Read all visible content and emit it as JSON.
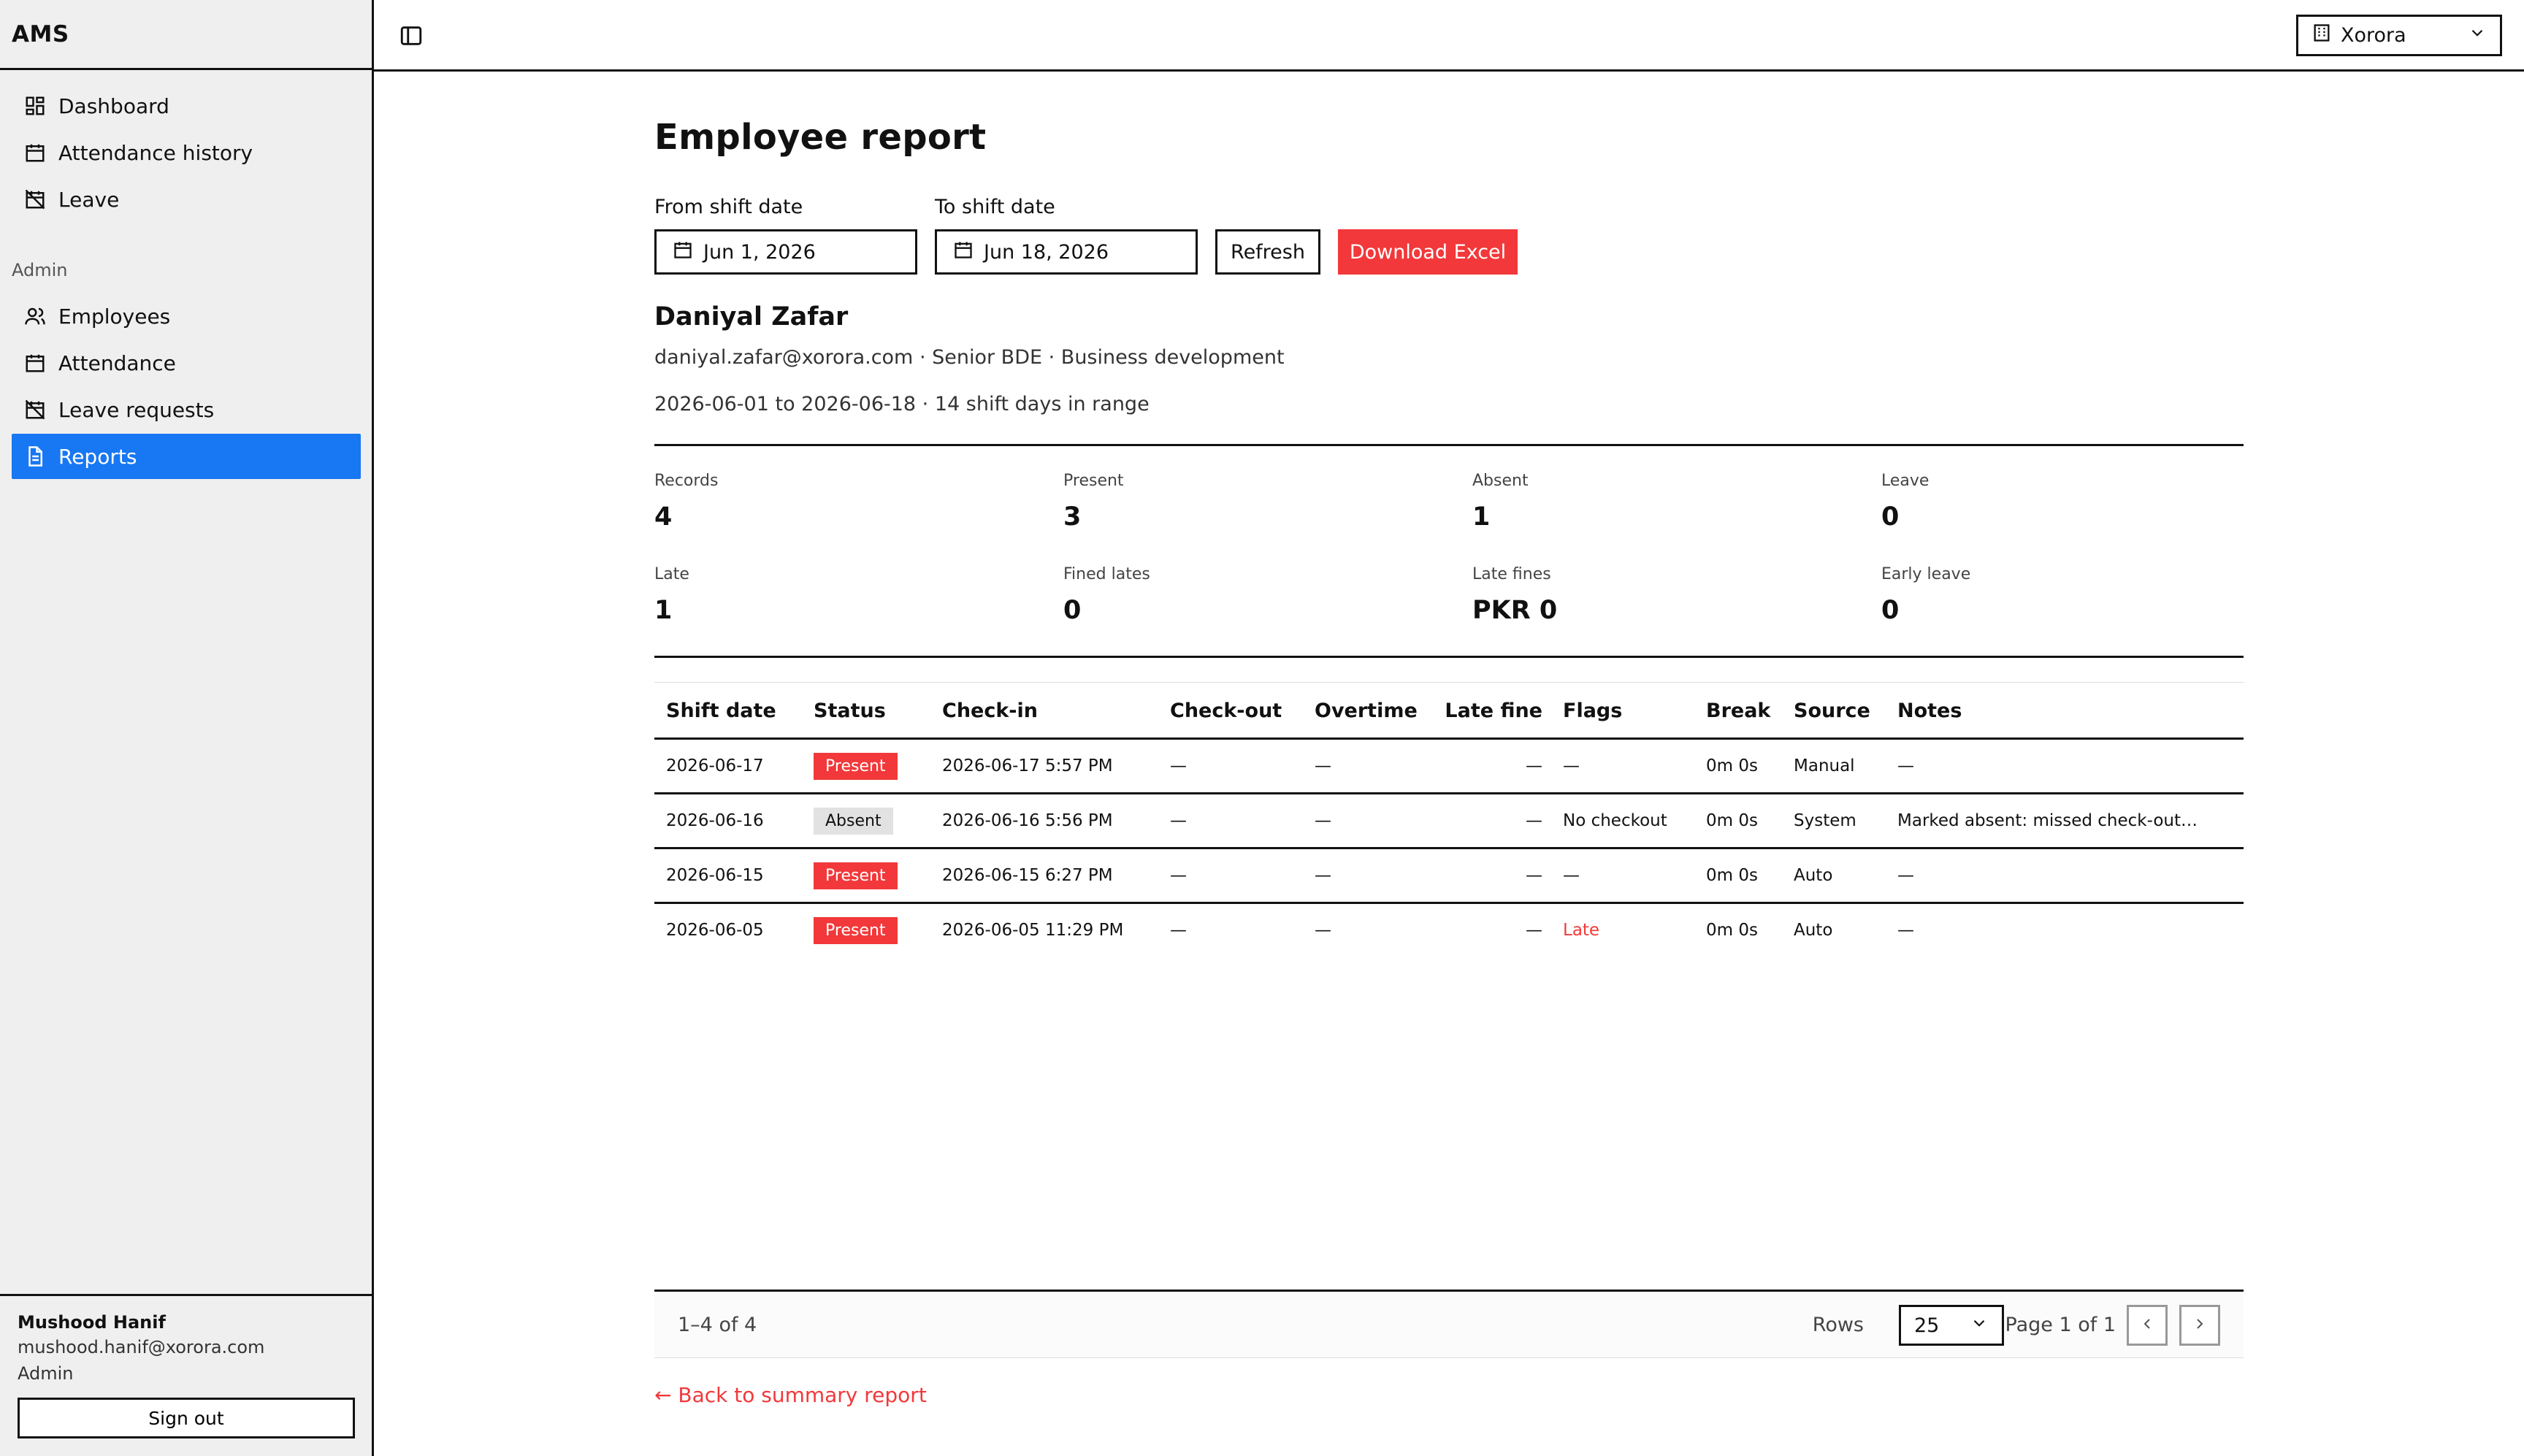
{
  "app": {
    "title": "AMS"
  },
  "sidebar": {
    "nav": [
      {
        "label": "Dashboard",
        "icon": "dashboard-icon"
      },
      {
        "label": "Attendance history",
        "icon": "calendar-icon"
      },
      {
        "label": "Leave",
        "icon": "calendar-off-icon"
      }
    ],
    "admin_section_label": "Admin",
    "admin_nav": [
      {
        "label": "Employees",
        "icon": "users-icon"
      },
      {
        "label": "Attendance",
        "icon": "calendar-icon"
      },
      {
        "label": "Leave requests",
        "icon": "calendar-off-icon"
      },
      {
        "label": "Reports",
        "icon": "file-report-icon",
        "active": true
      }
    ],
    "user": {
      "name": "Mushood Hanif",
      "email": "mushood.hanif@xorora.com",
      "role": "Admin"
    },
    "signout_label": "Sign out"
  },
  "topbar": {
    "org": "Xorora"
  },
  "page": {
    "title": "Employee report",
    "from_label": "From shift date",
    "from_value": "Jun 1, 2026",
    "to_label": "To shift date",
    "to_value": "Jun 18, 2026",
    "refresh_label": "Refresh",
    "download_label": "Download Excel"
  },
  "employee": {
    "name": "Daniyal Zafar",
    "meta": "daniyal.zafar@xorora.com · Senior BDE · Business development",
    "range": "2026-06-01 to 2026-06-18 · 14 shift days in range"
  },
  "stats": [
    {
      "label": "Records",
      "value": "4"
    },
    {
      "label": "Present",
      "value": "3"
    },
    {
      "label": "Absent",
      "value": "1"
    },
    {
      "label": "Leave",
      "value": "0"
    },
    {
      "label": "Late",
      "value": "1"
    },
    {
      "label": "Fined lates",
      "value": "0"
    },
    {
      "label": "Late fines",
      "value": "PKR 0"
    },
    {
      "label": "Early leave",
      "value": "0"
    }
  ],
  "table": {
    "headers": [
      "Shift date",
      "Status",
      "Check-in",
      "Check-out",
      "Overtime",
      "Late fine",
      "Flags",
      "Break",
      "Source",
      "Notes"
    ],
    "rows": [
      {
        "shift_date": "2026-06-17",
        "status": "Present",
        "check_in": "2026-06-17 5:57 PM",
        "check_out": "—",
        "overtime": "—",
        "late_fine": "—",
        "flags": "—",
        "break": "0m 0s",
        "source": "Manual",
        "notes": "—"
      },
      {
        "shift_date": "2026-06-16",
        "status": "Absent",
        "check_in": "2026-06-16 5:56 PM",
        "check_out": "—",
        "overtime": "—",
        "late_fine": "—",
        "flags": "No checkout",
        "break": "0m 0s",
        "source": "System",
        "notes": "Marked absent: missed check-out…"
      },
      {
        "shift_date": "2026-06-15",
        "status": "Present",
        "check_in": "2026-06-15 6:27 PM",
        "check_out": "—",
        "overtime": "—",
        "late_fine": "—",
        "flags": "—",
        "break": "0m 0s",
        "source": "Auto",
        "notes": "—"
      },
      {
        "shift_date": "2026-06-05",
        "status": "Present",
        "check_in": "2026-06-05 11:29 PM",
        "check_out": "—",
        "overtime": "—",
        "late_fine": "—",
        "flags": "Late",
        "break": "0m 0s",
        "source": "Auto",
        "notes": "—"
      }
    ]
  },
  "pager": {
    "count": "1–4 of 4",
    "rows_label": "Rows",
    "rows_value": "25",
    "page_label": "Page 1 of 1"
  },
  "back_link": "← Back to summary report",
  "colors": {
    "accent": "#1877f2",
    "danger": "#f2383a"
  }
}
